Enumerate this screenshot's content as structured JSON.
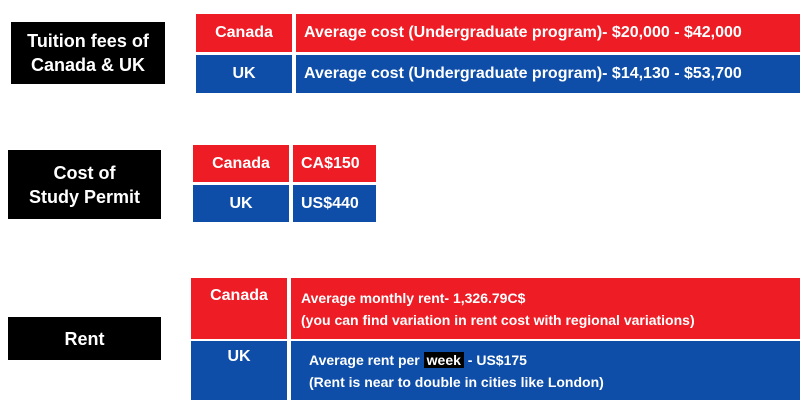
{
  "sections": {
    "tuition": {
      "label": "Tuition fees of\nCanada & UK",
      "rows": [
        {
          "country": "Canada",
          "text": "Average cost (Undergraduate program)- $20,000 - $42,000",
          "color": "#ee1c25"
        },
        {
          "country": "UK",
          "text": "Average cost (Undergraduate program)- $14,130 - $53,700",
          "color": "#0e4ea8"
        }
      ]
    },
    "permit": {
      "label": "Cost of\nStudy Permit",
      "rows": [
        {
          "country": "Canada",
          "text": "CA$150",
          "color": "#ee1c25"
        },
        {
          "country": "UK",
          "text": "US$440",
          "color": "#0e4ea8"
        }
      ]
    },
    "rent": {
      "label": "Rent",
      "canada": {
        "country": "Canada",
        "line1": "Average monthly rent- 1,326.79C$",
        "line2": "(you can find variation in rent cost with regional variations)"
      },
      "uk": {
        "country": "UK",
        "line1_pre": "Average rent per ",
        "line1_highlight": "week",
        "line1_post": " - US$175",
        "line2": "(Rent is near to double in cities like London)"
      }
    }
  }
}
